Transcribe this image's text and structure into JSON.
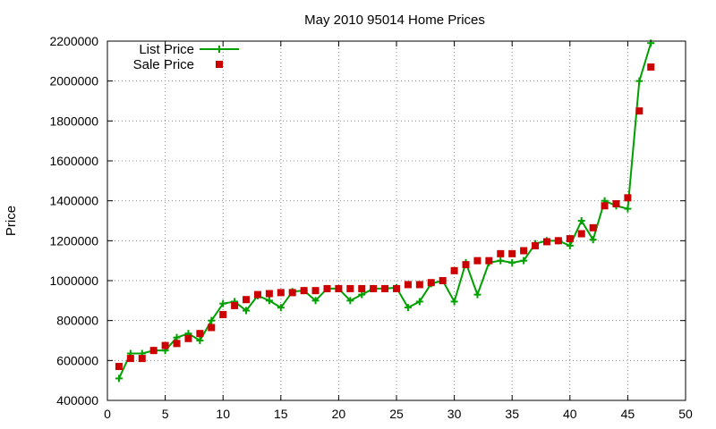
{
  "chart_data": {
    "type": "line",
    "title": "May 2010 95014 Home Prices",
    "xlabel": "",
    "ylabel": "Price",
    "xlim": [
      0,
      50
    ],
    "ylim": [
      400000,
      2200000
    ],
    "xticks": [
      0,
      5,
      10,
      15,
      20,
      25,
      30,
      35,
      40,
      45,
      50
    ],
    "yticks": [
      400000,
      600000,
      800000,
      1000000,
      1200000,
      1400000,
      1600000,
      1800000,
      2000000,
      2200000
    ],
    "grid": true,
    "legend_position": "top-left",
    "x": [
      1,
      2,
      3,
      4,
      5,
      6,
      7,
      8,
      9,
      10,
      11,
      12,
      13,
      14,
      15,
      16,
      17,
      18,
      19,
      20,
      21,
      22,
      23,
      24,
      25,
      26,
      27,
      28,
      29,
      30,
      31,
      32,
      33,
      34,
      35,
      36,
      37,
      38,
      39,
      40,
      41,
      42,
      43,
      44,
      45,
      46,
      47
    ],
    "series": [
      {
        "name": "List Price",
        "style": "line+cross",
        "color": "#00a000",
        "values": [
          510000,
          635000,
          635000,
          650000,
          650000,
          715000,
          735000,
          700000,
          800000,
          885000,
          895000,
          850000,
          925000,
          900000,
          865000,
          945000,
          950000,
          900000,
          960000,
          960000,
          900000,
          930000,
          960000,
          960000,
          965000,
          865000,
          895000,
          985000,
          1000000,
          895000,
          1090000,
          930000,
          1090000,
          1100000,
          1090000,
          1100000,
          1185000,
          1200000,
          1200000,
          1175000,
          1300000,
          1205000,
          1400000,
          1375000,
          1360000,
          2000000,
          2190000
        ]
      },
      {
        "name": "Sale Price",
        "style": "square",
        "color": "#cc0000",
        "values": [
          570000,
          610000,
          610000,
          650000,
          675000,
          685000,
          710000,
          735000,
          765000,
          830000,
          875000,
          905000,
          930000,
          935000,
          940000,
          940000,
          950000,
          950000,
          960000,
          960000,
          960000,
          960000,
          960000,
          960000,
          960000,
          980000,
          980000,
          990000,
          1000000,
          1050000,
          1080000,
          1100000,
          1100000,
          1135000,
          1135000,
          1150000,
          1175000,
          1195000,
          1200000,
          1210000,
          1235000,
          1265000,
          1375000,
          1385000,
          1415000,
          1850000,
          2070000
        ]
      }
    ]
  }
}
